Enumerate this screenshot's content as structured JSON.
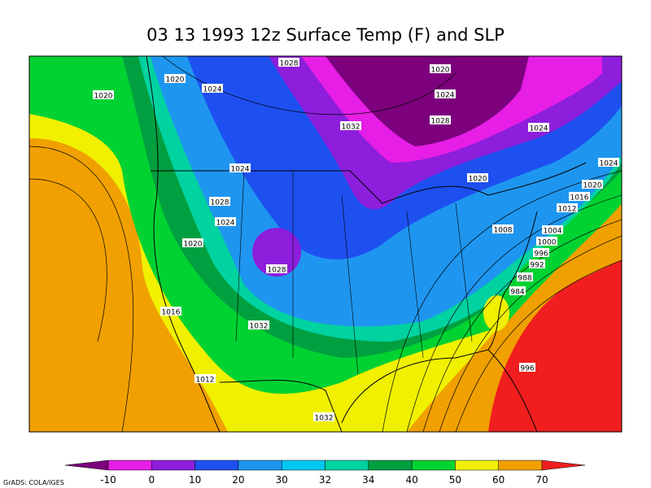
{
  "title": "03 13 1993 12z Surface Temp (F) and SLP",
  "isobar_labels": [
    "1028",
    "1020",
    "1024",
    "1020",
    "1020",
    "1024",
    "1032",
    "1028",
    "1024",
    "1024",
    "1020",
    "1024",
    "1020",
    "1016",
    "1012",
    "1028",
    "1024",
    "1020",
    "1008",
    "1004",
    "1000",
    "996",
    "992",
    "1028",
    "988",
    "984",
    "1016",
    "1032",
    "996",
    "1012",
    "1032"
  ],
  "colorbar": {
    "labels": [
      -10,
      0,
      10,
      20,
      30,
      32,
      34,
      40,
      50,
      60,
      70
    ],
    "colors": [
      "#7d007d",
      "#e61ee6",
      "#8c1edc",
      "#1e50f0",
      "#1e96f0",
      "#00c8f0",
      "#00d2a0",
      "#00a040",
      "#00d232",
      "#f0f000",
      "#f0a000",
      "#f01e1e"
    ]
  },
  "credit": "GrADS: COLA/IGES"
}
